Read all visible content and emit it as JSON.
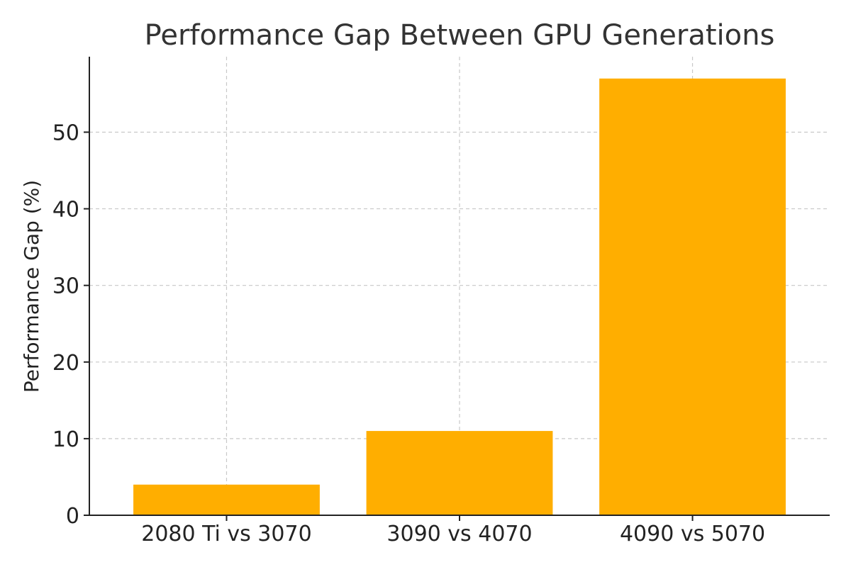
{
  "chart_data": {
    "type": "bar",
    "title": "Performance Gap Between GPU Generations",
    "xlabel": "",
    "ylabel": "Performance Gap (%)",
    "categories": [
      "2080 Ti vs 3070",
      "3090 vs 4070",
      "4090 vs 5070"
    ],
    "values": [
      4,
      11,
      57
    ],
    "ylim": [
      0,
      59.85
    ],
    "yticks": [
      0,
      10,
      20,
      30,
      40,
      50
    ],
    "grid": true,
    "bar_color": "#FFAE00"
  }
}
